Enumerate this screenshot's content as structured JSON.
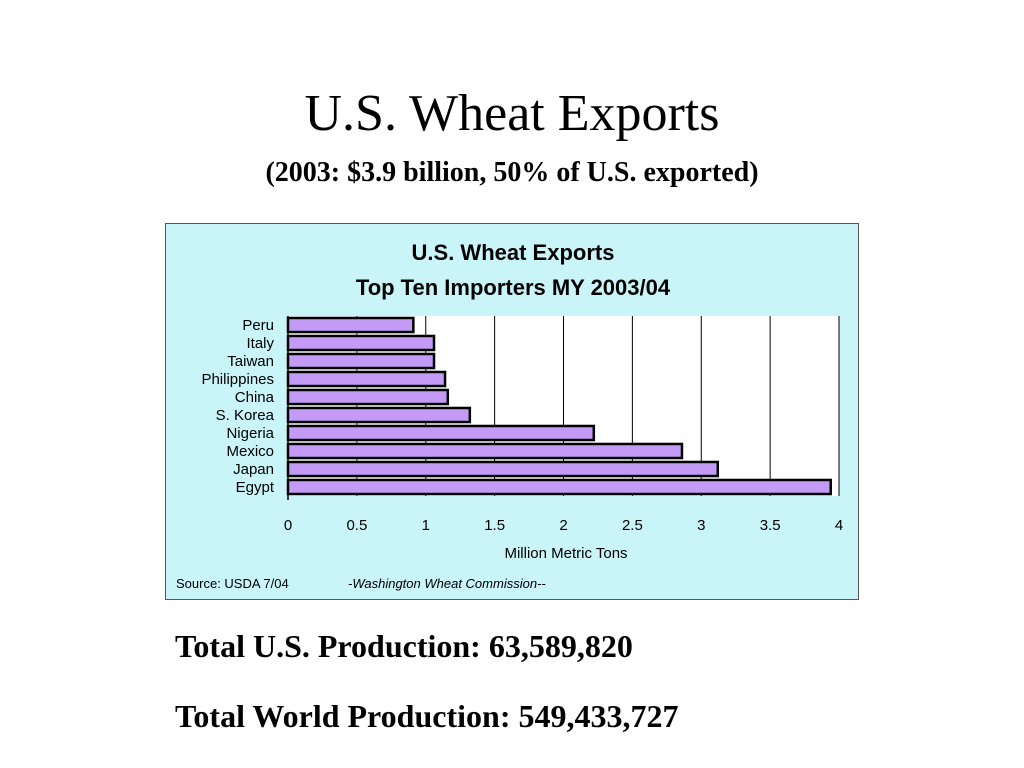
{
  "slide": {
    "title": "U.S. Wheat Exports",
    "subtitle": "(2003: $3.9 billion, 50% of U.S. exported)"
  },
  "footer": {
    "us_production": "Total U.S. Production: 63,589,820",
    "world_production": "Total World Production: 549,433,727"
  },
  "chart_data": {
    "type": "bar",
    "orientation": "horizontal",
    "title": "U.S. Wheat Exports",
    "subtitle": "Top Ten Importers MY 2003/04",
    "xlabel": "Million Metric Tons",
    "ylabel": "",
    "categories": [
      "Peru",
      "Italy",
      "Taiwan",
      "Philippines",
      "China",
      "S. Korea",
      "Nigeria",
      "Mexico",
      "Japan",
      "Egypt"
    ],
    "values": [
      0.91,
      1.06,
      1.06,
      1.14,
      1.16,
      1.32,
      2.22,
      2.86,
      3.12,
      3.94
    ],
    "xlim": [
      0,
      4
    ],
    "xticks": [
      "0",
      "0.5",
      "1",
      "1.5",
      "2",
      "2.5",
      "3",
      "3.5",
      "4"
    ],
    "grid": "vertical",
    "legend": "none",
    "source": "Source: USDA 7/04",
    "credit": "-Washington Wheat Commission--",
    "colors": {
      "background": "#c9f4f8",
      "plot_area": "#ffffff",
      "bar_fill": "#c39bf7",
      "bar_stroke": "#000000"
    }
  }
}
